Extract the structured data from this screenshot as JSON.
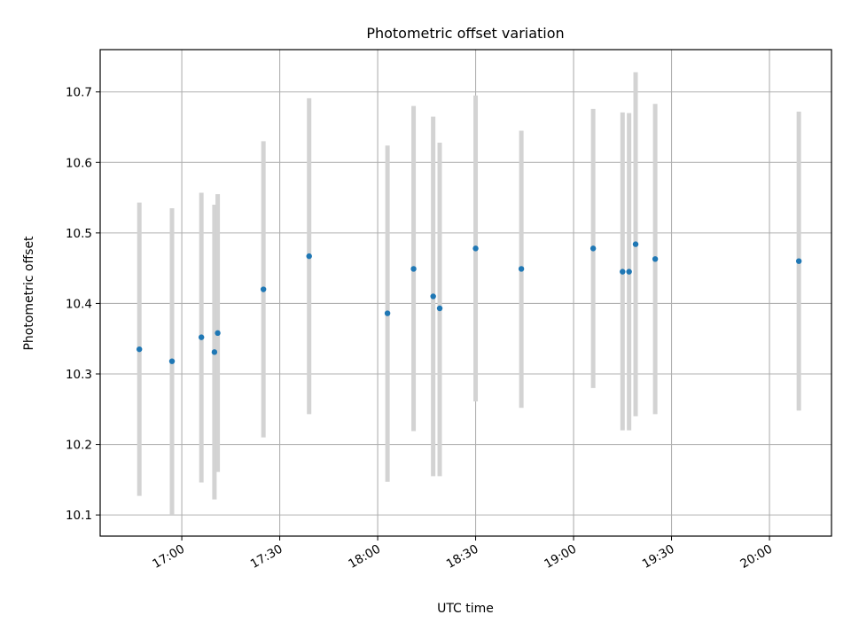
{
  "chart_data": {
    "type": "scatter",
    "title": "Photometric offset variation",
    "xlabel": "UTC time",
    "ylabel": "Photometric offset",
    "x_ticks": [
      "17:00",
      "17:30",
      "18:00",
      "18:30",
      "19:00",
      "19:30",
      "20:00"
    ],
    "y_ticks": [
      "10.1",
      "10.2",
      "10.3",
      "10.4",
      "10.5",
      "10.6",
      "10.7"
    ],
    "xlim": [
      "16:35",
      "20:19"
    ],
    "ylim": [
      10.07,
      10.76
    ],
    "grid": true,
    "error_bar_color": "#d3d3d3",
    "point_color": "#1f77b4",
    "series": [
      {
        "points": [
          {
            "time": "16:47",
            "value": 10.335,
            "low": 10.127,
            "high": 10.543
          },
          {
            "time": "16:57",
            "value": 10.318,
            "low": 10.101,
            "high": 10.535
          },
          {
            "time": "17:06",
            "value": 10.352,
            "low": 10.146,
            "high": 10.557
          },
          {
            "time": "17:10",
            "value": 10.331,
            "low": 10.122,
            "high": 10.54
          },
          {
            "time": "17:11",
            "value": 10.358,
            "low": 10.161,
            "high": 10.555
          },
          {
            "time": "17:25",
            "value": 10.42,
            "low": 10.21,
            "high": 10.63
          },
          {
            "time": "17:39",
            "value": 10.467,
            "low": 10.243,
            "high": 10.691
          },
          {
            "time": "18:03",
            "value": 10.386,
            "low": 10.147,
            "high": 10.624
          },
          {
            "time": "18:11",
            "value": 10.449,
            "low": 10.219,
            "high": 10.68
          },
          {
            "time": "18:17",
            "value": 10.41,
            "low": 10.155,
            "high": 10.665
          },
          {
            "time": "18:19",
            "value": 10.393,
            "low": 10.155,
            "high": 10.628
          },
          {
            "time": "18:30",
            "value": 10.478,
            "low": 10.261,
            "high": 10.695
          },
          {
            "time": "18:44",
            "value": 10.449,
            "low": 10.252,
            "high": 10.645
          },
          {
            "time": "19:06",
            "value": 10.478,
            "low": 10.28,
            "high": 10.676
          },
          {
            "time": "19:15",
            "value": 10.445,
            "low": 10.22,
            "high": 10.671
          },
          {
            "time": "19:17",
            "value": 10.445,
            "low": 10.22,
            "high": 10.67
          },
          {
            "time": "19:19",
            "value": 10.484,
            "low": 10.24,
            "high": 10.728
          },
          {
            "time": "19:25",
            "value": 10.463,
            "low": 10.243,
            "high": 10.683
          },
          {
            "time": "20:09",
            "value": 10.46,
            "low": 10.248,
            "high": 10.672
          }
        ]
      }
    ]
  }
}
